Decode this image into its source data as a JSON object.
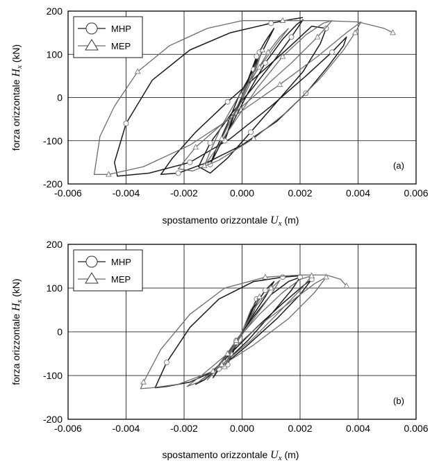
{
  "chart_data": [
    {
      "type": "line",
      "panel_label": "(a)",
      "xlabel_prefix": "spostamento orizzontale ",
      "xlabel_var": "U",
      "xlabel_sub": "x",
      "xlabel_unit": " (m)",
      "ylabel_prefix": "forza orizzontale ",
      "ylabel_var": "H",
      "ylabel_sub": "x",
      "ylabel_unit": " (kN)",
      "xlim": [
        -0.006,
        0.006
      ],
      "ylim": [
        -200,
        200
      ],
      "xticks": [
        "-0.006",
        "-0.004",
        "-0.002",
        "0.000",
        "0.002",
        "0.004",
        "0.006"
      ],
      "yticks": [
        "200",
        "100",
        "0",
        "-100",
        "-200"
      ],
      "grid": true,
      "legend_position": "top-left",
      "series": [
        {
          "name": "MHP",
          "marker": "circle",
          "color": "#1a1a1a",
          "x": [
            0.0,
            0.0003,
            0.0006,
            0.0004,
            0.0001,
            -0.0003,
            -0.0006,
            -0.0004,
            -0.0001,
            0.0002,
            0.0005,
            0.0008,
            0.0011,
            0.0008,
            0.0004,
            -0.0001,
            -0.0005,
            -0.0009,
            -0.0011,
            -0.0008,
            -0.0003,
            0.0002,
            0.0008,
            0.0014,
            0.0019,
            0.0021,
            0.0017,
            0.0011,
            0.0004,
            -0.0004,
            -0.0011,
            -0.0015,
            -0.0011,
            -0.0005,
            0.0003,
            0.0012,
            0.0021,
            0.0027,
            0.0029,
            0.0024,
            0.0016,
            0.0006,
            -0.0005,
            -0.0016,
            -0.0024,
            -0.0028,
            -0.0022,
            -0.0012,
            0.0,
            0.0012,
            0.0022,
            0.003,
            0.0035,
            0.0036,
            0.0031,
            0.0022,
            0.001,
            -0.0004,
            -0.0018,
            -0.0032,
            -0.0043,
            -0.0044,
            -0.004,
            -0.0031,
            -0.0018,
            -0.0004,
            0.001,
            0.0018,
            0.0021
          ],
          "y": [
            0,
            55,
            105,
            60,
            15,
            -45,
            -100,
            -60,
            -15,
            40,
            95,
            130,
            160,
            120,
            65,
            5,
            -60,
            -120,
            -155,
            -115,
            -55,
            10,
            80,
            135,
            170,
            180,
            140,
            85,
            25,
            -40,
            -105,
            -160,
            -175,
            -140,
            -80,
            -10,
            60,
            125,
            160,
            165,
            115,
            55,
            -10,
            -80,
            -140,
            -178,
            -175,
            -150,
            -110,
            -55,
            10,
            75,
            120,
            140,
            105,
            50,
            -20,
            -95,
            -150,
            -175,
            -182,
            -150,
            -60,
            40,
            110,
            150,
            172,
            182,
            185
          ]
        },
        {
          "name": "MEP",
          "marker": "triangle",
          "color": "#6b6b6b",
          "x": [
            0.0,
            0.0004,
            0.0007,
            0.0005,
            0.0001,
            -0.0003,
            -0.0007,
            -0.0005,
            -0.0001,
            0.0004,
            0.0009,
            0.0013,
            0.0016,
            0.0012,
            0.0006,
            -0.0001,
            -0.0007,
            -0.0011,
            -0.0013,
            -0.0009,
            -0.0003,
            0.0005,
            0.0014,
            0.0022,
            0.0028,
            0.0031,
            0.0026,
            0.0017,
            0.0007,
            -0.0005,
            -0.0016,
            -0.0022,
            -0.0017,
            -0.0008,
            0.0004,
            0.0016,
            0.0027,
            0.0035,
            0.0039,
            0.0041,
            0.0036,
            0.0026,
            0.0013,
            -0.0002,
            -0.0018,
            -0.0034,
            -0.0046,
            -0.0051,
            -0.0049,
            -0.0044,
            -0.0036,
            -0.0025,
            -0.0012,
            0.0,
            0.0014,
            0.0028,
            0.004,
            0.0049,
            0.0052
          ],
          "y": [
            0,
            60,
            110,
            70,
            20,
            -40,
            -95,
            -65,
            -20,
            50,
            105,
            140,
            160,
            125,
            70,
            5,
            -65,
            -125,
            -158,
            -120,
            -60,
            20,
            95,
            145,
            172,
            178,
            140,
            80,
            20,
            -50,
            -115,
            -165,
            -170,
            -145,
            -95,
            -30,
            45,
            110,
            150,
            175,
            150,
            95,
            30,
            -40,
            -110,
            -160,
            -178,
            -178,
            -90,
            -20,
            60,
            120,
            160,
            178,
            178,
            178,
            175,
            160,
            150
          ]
        }
      ]
    },
    {
      "type": "line",
      "panel_label": "(b)",
      "xlabel_prefix": "spostamento orizzontale ",
      "xlabel_var": "U",
      "xlabel_sub": "x",
      "xlabel_unit": " (m)",
      "ylabel_prefix": "forza orizzontale ",
      "ylabel_var": "H",
      "ylabel_sub": "x",
      "ylabel_unit": " (kN)",
      "xlim": [
        -0.006,
        0.006
      ],
      "ylim": [
        -200,
        200
      ],
      "xticks": [
        "-0.006",
        "-0.004",
        "-0.002",
        "0.000",
        "0.002",
        "0.004",
        "0.006"
      ],
      "yticks": [
        "200",
        "100",
        "0",
        "-100",
        "-200"
      ],
      "grid": true,
      "legend_position": "top-left",
      "series": [
        {
          "name": "MHP",
          "marker": "circle",
          "color": "#1a1a1a",
          "x": [
            0.0,
            0.0003,
            0.0005,
            0.0003,
            0.0,
            -0.0003,
            -0.0005,
            -0.0003,
            0.0,
            0.0004,
            0.0008,
            0.0011,
            0.0008,
            0.0003,
            -0.0002,
            -0.0007,
            -0.001,
            -0.0007,
            -0.0002,
            0.0004,
            0.001,
            0.0016,
            0.002,
            0.0017,
            0.001,
            0.0002,
            -0.0006,
            -0.0013,
            -0.0016,
            -0.0011,
            -0.0004,
            0.0005,
            0.0014,
            0.0021,
            0.0024,
            0.002,
            0.0012,
            0.0002,
            -0.0008,
            -0.0018,
            -0.0026,
            -0.003,
            -0.0026,
            -0.0018,
            -0.0008,
            0.0004,
            0.0014,
            0.002
          ],
          "y": [
            0,
            45,
            75,
            40,
            0,
            -40,
            -75,
            -45,
            0,
            55,
            95,
            115,
            80,
            30,
            -25,
            -75,
            -105,
            -70,
            -20,
            35,
            85,
            115,
            125,
            95,
            40,
            -20,
            -70,
            -110,
            -120,
            -95,
            -50,
            10,
            65,
            105,
            120,
            85,
            30,
            -30,
            -85,
            -115,
            -125,
            -128,
            -70,
            10,
            75,
            115,
            125,
            128
          ]
        },
        {
          "name": "MEP",
          "marker": "triangle",
          "color": "#6b6b6b",
          "x": [
            0.0,
            0.0003,
            0.0006,
            0.0004,
            0.0,
            -0.0004,
            -0.0006,
            -0.0004,
            0.0,
            0.0005,
            0.001,
            0.0013,
            0.001,
            0.0004,
            -0.0002,
            -0.0008,
            -0.0012,
            -0.0008,
            -0.0002,
            0.0006,
            0.0014,
            0.002,
            0.0024,
            0.002,
            0.0012,
            0.0003,
            -0.0007,
            -0.0015,
            -0.0019,
            -0.0014,
            -0.0005,
            0.0006,
            0.0017,
            0.0025,
            0.0029,
            0.0025,
            0.0016,
            0.0004,
            -0.001,
            -0.0022,
            -0.0031,
            -0.0035,
            -0.0034,
            -0.0028,
            -0.0018,
            -0.0006,
            0.0008,
            0.002,
            0.0029,
            0.0034,
            0.0036
          ],
          "y": [
            0,
            50,
            80,
            45,
            0,
            -45,
            -80,
            -50,
            0,
            60,
            100,
            118,
            85,
            30,
            -25,
            -80,
            -110,
            -75,
            -20,
            40,
            90,
            120,
            128,
            95,
            40,
            -20,
            -75,
            -115,
            -125,
            -100,
            -50,
            15,
            70,
            110,
            125,
            90,
            30,
            -30,
            -90,
            -120,
            -128,
            -130,
            -115,
            -40,
            40,
            100,
            125,
            130,
            130,
            120,
            105
          ]
        }
      ]
    }
  ]
}
